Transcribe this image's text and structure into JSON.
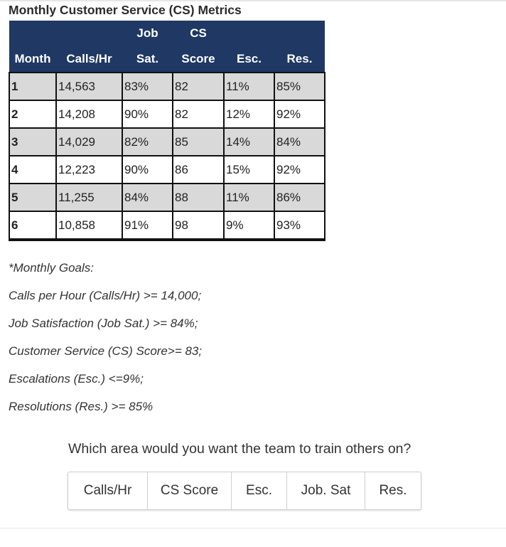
{
  "title": "Monthly Customer Service (CS) Metrics",
  "table": {
    "header_top": [
      "",
      "",
      "Job",
      "CS",
      "",
      ""
    ],
    "header_bottom": [
      "Month",
      "Calls/Hr",
      "Sat.",
      "Score",
      "Esc.",
      "Res."
    ],
    "rows": [
      [
        "1",
        "14,563",
        "83%",
        "82",
        "11%",
        "85%"
      ],
      [
        "2",
        "14,208",
        "90%",
        "82",
        "12%",
        "92%"
      ],
      [
        "3",
        "14,029",
        "82%",
        "85",
        "14%",
        "84%"
      ],
      [
        "4",
        "12,223",
        "90%",
        "86",
        "15%",
        "92%"
      ],
      [
        "5",
        "11,255",
        "84%",
        "88",
        "11%",
        "86%"
      ],
      [
        "6",
        "10,858",
        "91%",
        "98",
        "9%",
        "93%"
      ]
    ]
  },
  "goals": [
    "*Monthly Goals:",
    "Calls per Hour (Calls/Hr) >= 14,000;",
    "Job Satisfaction (Job Sat.) >= 84%;",
    "Customer Service (CS) Score>= 83;",
    "Escalations (Esc.) <=9%;",
    "Resolutions (Res.) >= 85%"
  ],
  "question": "Which area would you want the team to train others on?",
  "options": [
    "Calls/Hr",
    "CS Score",
    "Esc.",
    "Job. Sat",
    "Res."
  ],
  "colors": {
    "header_bg": "#1f3864",
    "header_text": "#ffffff",
    "row_shade": "#d9d9d9"
  }
}
